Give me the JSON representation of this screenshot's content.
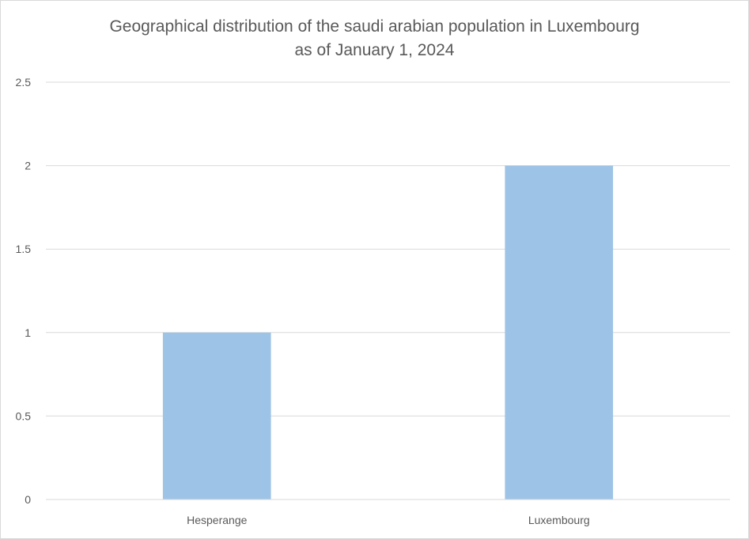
{
  "chart_data": {
    "type": "bar",
    "title_lines": [
      "Geographical distribution of the saudi arabian population in Luxembourg",
      "as of January 1, 2024"
    ],
    "categories": [
      "Hesperange",
      "Luxembourg"
    ],
    "values": [
      1,
      2
    ],
    "ylim": [
      0,
      2.5
    ],
    "y_ticks": [
      "0",
      "0.5",
      "1",
      "1.5",
      "2",
      "2.5"
    ],
    "xlabel": "",
    "ylabel": "",
    "grid": true,
    "legend": "none",
    "colors": {
      "bar": "#9dc3e6",
      "gridline": "#d9d9d9",
      "axis_line": "#d9d9d9",
      "text": "#595959"
    }
  }
}
